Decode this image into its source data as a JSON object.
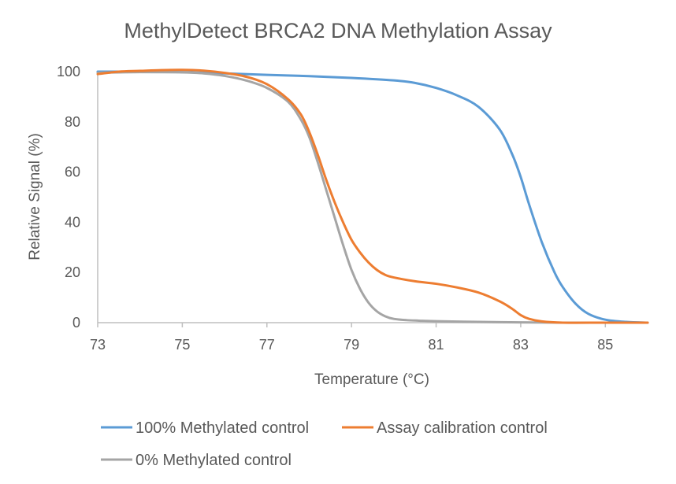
{
  "chart_data": {
    "type": "line",
    "title": "MethylDetect BRCA2 DNA Methylation Assay",
    "xlabel": "Temperature (°C)",
    "ylabel": "Relative Signal (%)",
    "xlim": [
      73,
      86
    ],
    "ylim": [
      0,
      100
    ],
    "xticks": [
      73,
      75,
      77,
      79,
      81,
      83,
      85
    ],
    "yticks": [
      0,
      20,
      40,
      60,
      80,
      100
    ],
    "grid": false,
    "legend_position": "bottom",
    "series": [
      {
        "name": "100% Methylated control",
        "color": "#5b9bd5",
        "x": [
          73,
          74,
          75,
          76,
          77,
          78,
          79,
          80,
          80.5,
          81,
          81.5,
          82,
          82.5,
          82.8,
          83,
          83.2,
          83.5,
          83.8,
          84,
          84.3,
          84.6,
          85,
          85.5,
          86
        ],
        "y": [
          100,
          100,
          99.8,
          99.3,
          98.7,
          98.2,
          97.5,
          96.5,
          95.5,
          93.5,
          90.5,
          86,
          77,
          67,
          58,
          47,
          32,
          20,
          14,
          7.5,
          3.5,
          1.2,
          0.3,
          0
        ]
      },
      {
        "name": "Assay calibration control",
        "color": "#ed7d31",
        "x": [
          73,
          73.5,
          74,
          74.5,
          75,
          75.5,
          76,
          76.5,
          77,
          77.5,
          77.8,
          78,
          78.2,
          78.4,
          78.6,
          78.8,
          79,
          79.2,
          79.4,
          79.6,
          79.8,
          80,
          80.5,
          81,
          81.5,
          82,
          82.5,
          82.8,
          83,
          83.2,
          83.5,
          84,
          85,
          86
        ],
        "y": [
          99,
          100,
          100.3,
          100.6,
          100.7,
          100.4,
          99.5,
          98,
          95,
          89,
          83,
          76,
          67,
          57,
          48,
          40,
          33,
          28,
          24,
          21,
          19,
          18,
          16.5,
          15.5,
          14,
          12,
          8.5,
          5.5,
          3,
          1.5,
          0.5,
          0,
          0,
          0
        ]
      },
      {
        "name": "0% Methylated control",
        "color": "#a5a5a5",
        "x": [
          73,
          73.5,
          74,
          75,
          75.5,
          76,
          76.5,
          77,
          77.5,
          77.8,
          78,
          78.2,
          78.4,
          78.6,
          78.8,
          79,
          79.2,
          79.4,
          79.6,
          79.8,
          80,
          80.3,
          80.6,
          81,
          82,
          83,
          84,
          85,
          86
        ],
        "y": [
          99.5,
          99.7,
          99.8,
          99.7,
          99.3,
          98.3,
          96.5,
          93.5,
          88,
          81,
          74,
          64,
          53,
          42,
          31,
          21,
          13.5,
          8,
          4.5,
          2.5,
          1.5,
          1,
          0.8,
          0.6,
          0.3,
          0.1,
          0,
          0,
          0
        ]
      }
    ]
  }
}
